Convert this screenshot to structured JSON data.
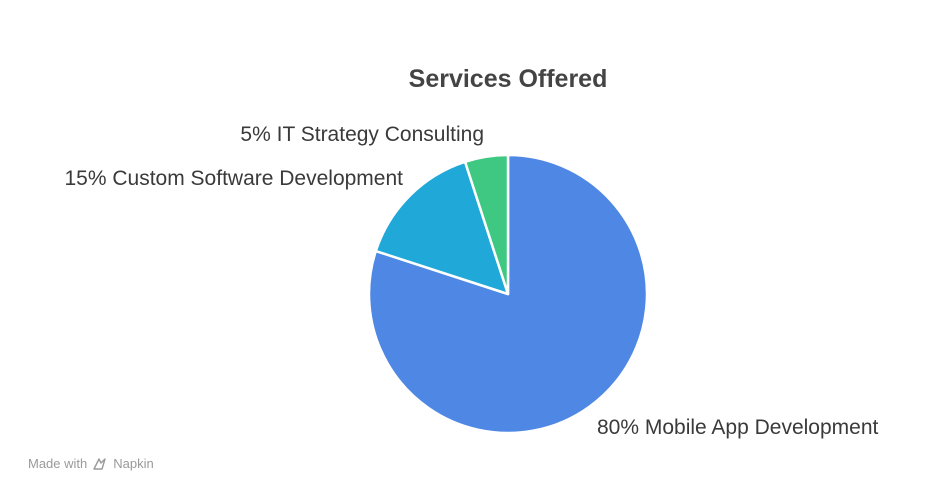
{
  "chart_data": {
    "type": "pie",
    "title": "Services Offered",
    "slices": [
      {
        "label": "80% Mobile App Development",
        "value": 80,
        "color": "#4e87e4"
      },
      {
        "label": "15% Custom Software Development",
        "value": 15,
        "color": "#1fa8d8"
      },
      {
        "label": "5% IT Strategy Consulting",
        "value": 5,
        "color": "#3ec882"
      }
    ]
  },
  "watermark": {
    "prefix": "Made with",
    "brand": "Napkin",
    "icon": "napkin-logo-icon"
  }
}
